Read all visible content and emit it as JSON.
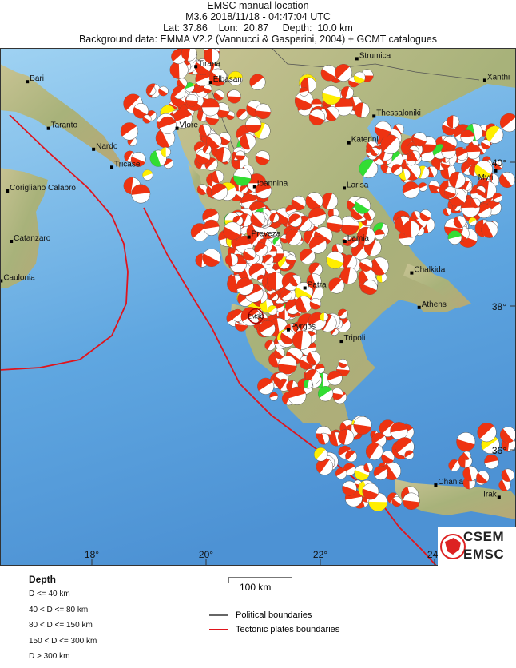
{
  "header": {
    "title": "EMSC manual location",
    "event": "M3.6  2018/11/18 - 04:47:04 UTC",
    "location": "Lat: 37.86    Lon:  20.87     Depth:  10.0 km",
    "background": "Background data: EMMA V2.2 (Vannucci & Gasperini, 2004) + GCMT catalogues"
  },
  "map": {
    "epicenter": {
      "label": "EMSC",
      "lat": 37.86,
      "lon": 20.87
    },
    "lon_ticks": [
      {
        "value": 18,
        "label": "18°"
      },
      {
        "value": 20,
        "label": "20°"
      },
      {
        "value": 22,
        "label": "22°"
      },
      {
        "value": 24,
        "label": "24°"
      }
    ],
    "lat_ticks": [
      {
        "value": 40,
        "label": "40°"
      },
      {
        "value": 38,
        "label": "38°"
      },
      {
        "value": 36,
        "label": "36°"
      }
    ],
    "cities": [
      {
        "name": "Strumica",
        "lat": 41.44,
        "lon": 22.64
      },
      {
        "name": "Tirana",
        "lat": 41.33,
        "lon": 19.82
      },
      {
        "name": "Elbasan",
        "lat": 41.11,
        "lon": 20.08
      },
      {
        "name": "Xanthi",
        "lat": 41.14,
        "lon": 24.88
      },
      {
        "name": "Bari",
        "lat": 41.12,
        "lon": 16.87
      },
      {
        "name": "Taranto",
        "lat": 40.47,
        "lon": 17.24
      },
      {
        "name": "Vlore",
        "lat": 40.47,
        "lon": 19.49
      },
      {
        "name": "Thessaloniki",
        "lat": 40.64,
        "lon": 22.94
      },
      {
        "name": "Nardo",
        "lat": 40.18,
        "lon": 18.03
      },
      {
        "name": "Katerini",
        "lat": 40.27,
        "lon": 22.5
      },
      {
        "name": "Tricase",
        "lat": 39.93,
        "lon": 18.35
      },
      {
        "name": "Myri",
        "lat": 39.88,
        "lon": 25.07
      },
      {
        "name": "Corigliano Calabro",
        "lat": 39.6,
        "lon": 16.52
      },
      {
        "name": "Ioannina",
        "lat": 39.66,
        "lon": 20.85
      },
      {
        "name": "Larisa",
        "lat": 39.64,
        "lon": 22.42
      },
      {
        "name": "Catanzaro",
        "lat": 38.9,
        "lon": 16.59
      },
      {
        "name": "Preveza",
        "lat": 38.96,
        "lon": 20.75
      },
      {
        "name": "Lamia",
        "lat": 38.9,
        "lon": 22.43
      },
      {
        "name": "Chalkida",
        "lat": 38.46,
        "lon": 23.6
      },
      {
        "name": "Caulonia",
        "lat": 38.35,
        "lon": 16.41
      },
      {
        "name": "Patra",
        "lat": 38.25,
        "lon": 21.73
      },
      {
        "name": "Athens",
        "lat": 37.98,
        "lon": 23.73
      },
      {
        "name": "Pyrgos",
        "lat": 37.67,
        "lon": 21.44
      },
      {
        "name": "Tripoli",
        "lat": 37.51,
        "lon": 22.37
      },
      {
        "name": "Chania",
        "lat": 35.51,
        "lon": 24.02
      },
      {
        "name": "Irak",
        "lat": 35.34,
        "lon": 25.13
      }
    ],
    "colors": {
      "sea": "#6fb4e6",
      "land": "#b9bf8a",
      "plate_boundary": "#e0141c",
      "political": "#555555",
      "depth": [
        "#ee3311",
        "#ffee00",
        "#33dd33",
        "#2233ee",
        "#8822aa"
      ]
    }
  },
  "legend": {
    "depth_title": "Depth",
    "depth_items": [
      "D <= 40 km",
      "40 < D <= 80 km",
      "80 < D <= 150 km",
      "150 < D <= 300 km",
      "D > 300 km"
    ],
    "scale": "100 km",
    "lines": [
      {
        "label": "Political boundaries",
        "color": "#666666"
      },
      {
        "label": "Tectonic plates boundaries",
        "color": "#e0141c"
      }
    ]
  },
  "logo": {
    "line1": "CSEM",
    "line2": "EMSC"
  }
}
